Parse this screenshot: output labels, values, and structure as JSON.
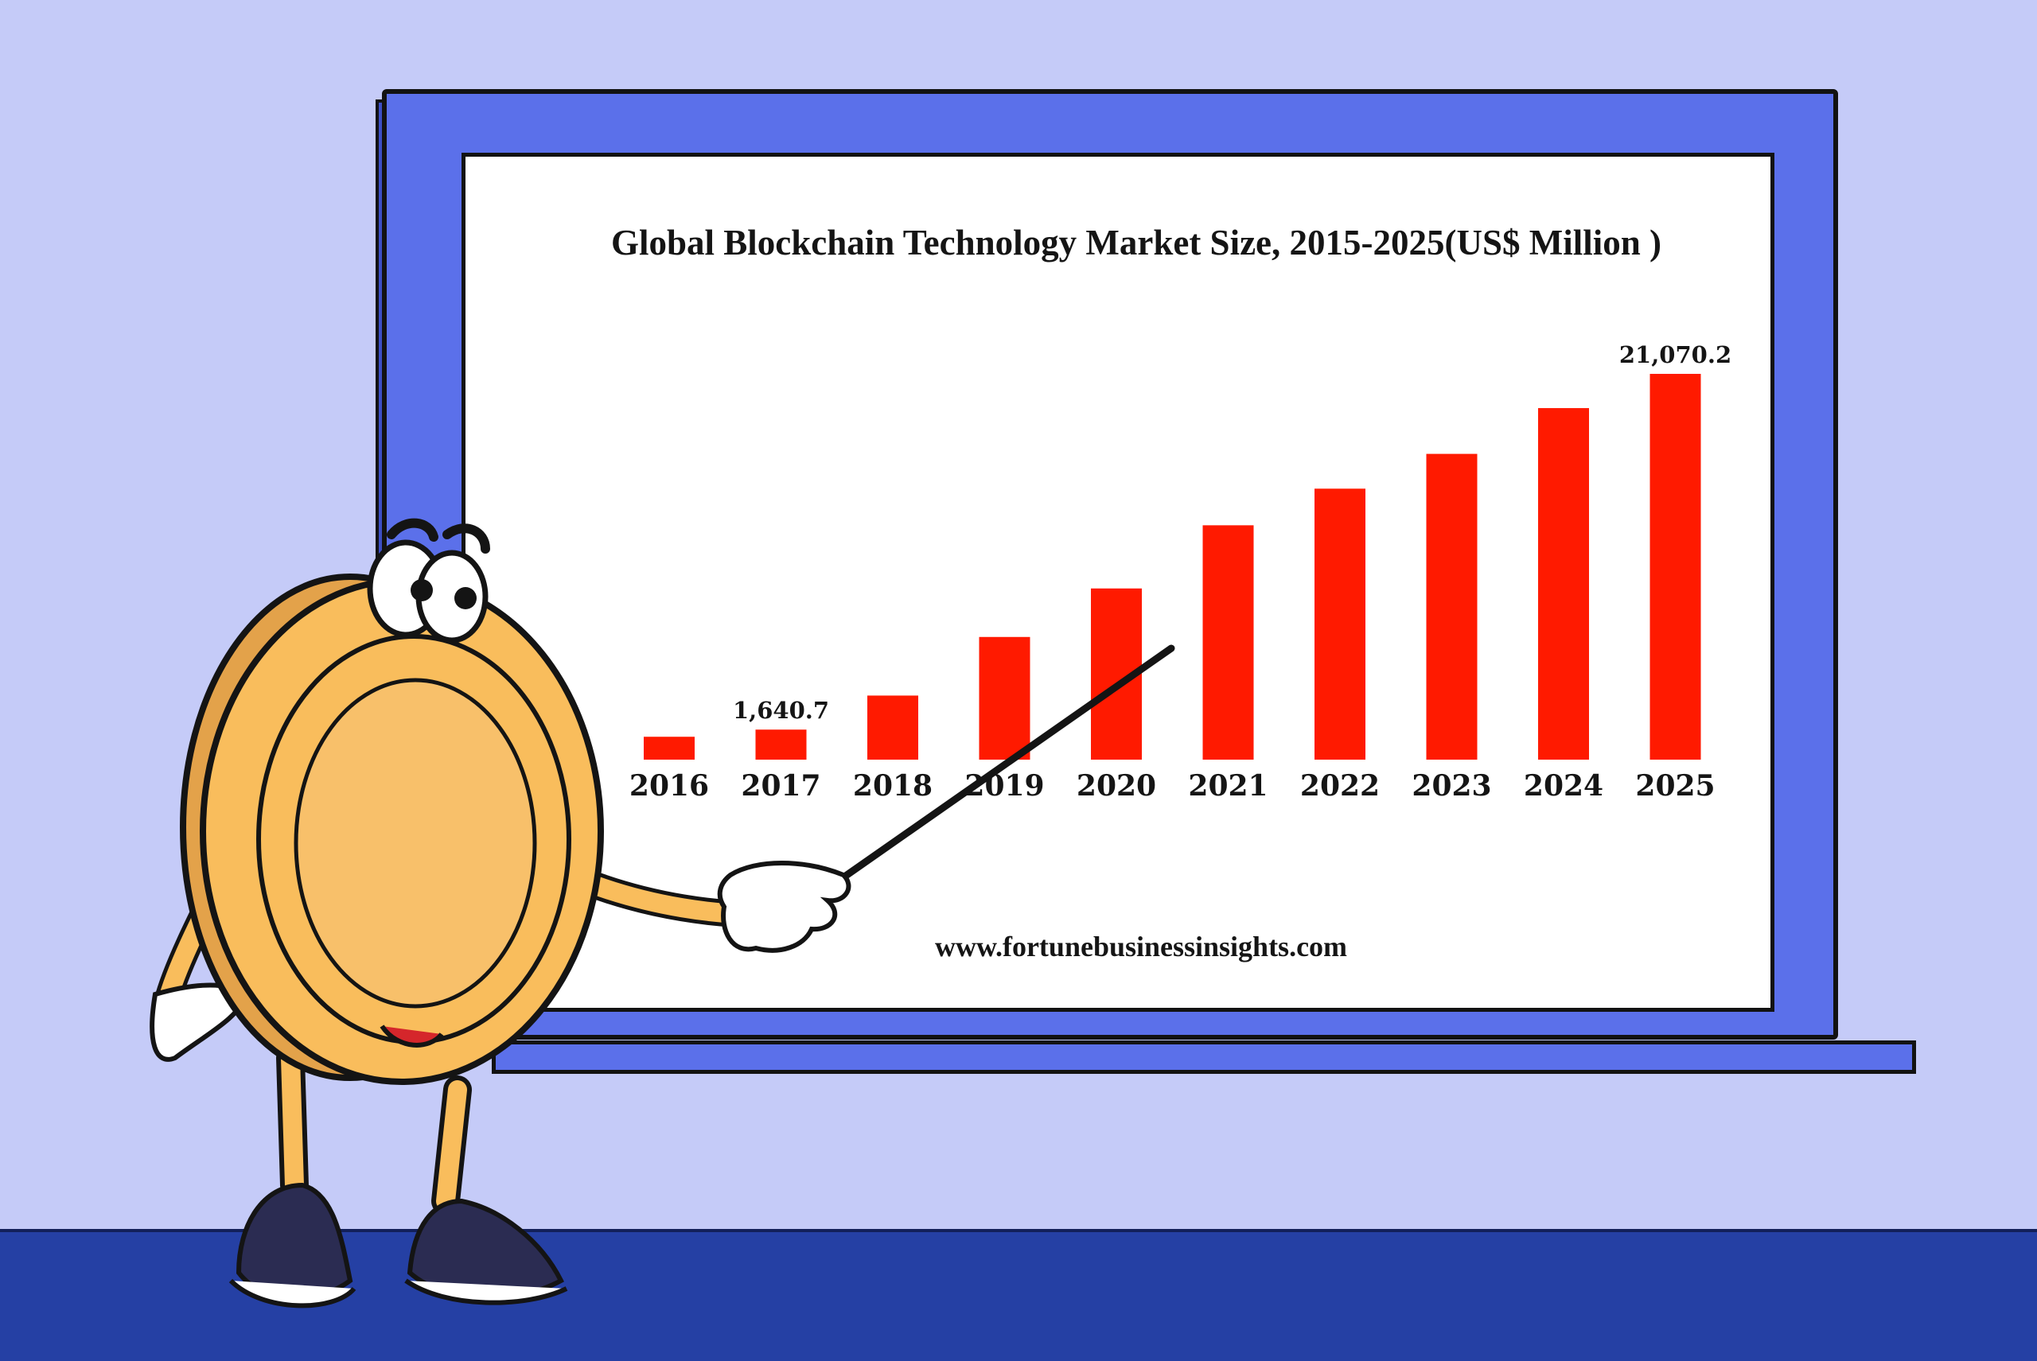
{
  "chart_data": {
    "type": "bar",
    "title": "Global Blockchain Technology Market  Size, 2015-2025(US$ Million )",
    "categories": [
      "2016",
      "2017",
      "2018",
      "2019",
      "2020",
      "2021",
      "2022",
      "2023",
      "2024",
      "2025"
    ],
    "values": [
      1250,
      1640.7,
      3500,
      6700,
      9350,
      12800,
      14800,
      16700,
      19200,
      21070.2
    ],
    "data_labels": [
      "",
      "1,640.7",
      "",
      "",
      "",
      "",
      "",
      "",
      "",
      "21,070.2"
    ],
    "ylim": [
      0,
      21070.2
    ],
    "grid": false,
    "legend": "none",
    "bar_color": "#ff1a00",
    "source": "www.fortunebusinessinsights.com"
  },
  "colors": {
    "background": "#c5cbf8",
    "floor": "#2540a4",
    "board_frame": "#5b70ea",
    "screen": "#ffffff",
    "coin": "#f9bd5c"
  },
  "icons": {
    "mascot": "coin-mascot-icon",
    "pointer": "pointer-stick-icon"
  }
}
